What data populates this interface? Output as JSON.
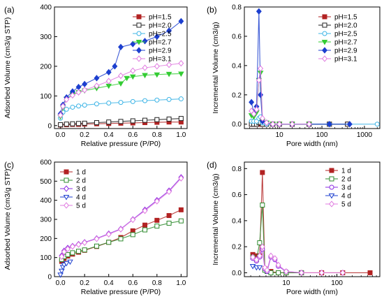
{
  "chart_data": [
    {
      "type": "line",
      "panel_label": "(a)",
      "xlabel": "Relative pressure (P/P0)",
      "ylabel": "Adsorbed Volume (cm3/g STP)",
      "xlim": [
        -0.05,
        1.05
      ],
      "ylim": [
        -10,
        400
      ],
      "x_ticks": [
        "0.0",
        "0.2",
        "0.4",
        "0.6",
        "0.8",
        "1.0"
      ],
      "y_ticks": [
        "0",
        "100",
        "200",
        "300",
        "400"
      ],
      "legend_position": "top-right",
      "series": [
        {
          "name": "pH=1.5",
          "color": "#b22222",
          "marker": "square-filled",
          "x": [
            0.0,
            0.05,
            0.1,
            0.15,
            0.2,
            0.3,
            0.4,
            0.5,
            0.6,
            0.7,
            0.8,
            0.9,
            1.0
          ],
          "y": [
            2,
            3,
            4,
            4,
            5,
            6,
            7,
            8,
            9,
            10,
            11,
            12,
            12
          ]
        },
        {
          "name": "pH=2.0",
          "color": "#222222",
          "marker": "square-open",
          "x": [
            0.0,
            0.05,
            0.1,
            0.15,
            0.2,
            0.3,
            0.4,
            0.5,
            0.6,
            0.7,
            0.8,
            0.9,
            1.0
          ],
          "y": [
            3,
            5,
            6,
            7,
            8,
            10,
            12,
            14,
            16,
            18,
            20,
            22,
            24
          ]
        },
        {
          "name": "pH=2.5",
          "color": "#3cb4e6",
          "marker": "circle-open",
          "x": [
            0.0,
            0.02,
            0.05,
            0.1,
            0.15,
            0.2,
            0.3,
            0.4,
            0.5,
            0.6,
            0.7,
            0.8,
            0.9,
            1.0
          ],
          "y": [
            25,
            45,
            55,
            62,
            66,
            69,
            73,
            76,
            78,
            81,
            84,
            86,
            88,
            90
          ]
        },
        {
          "name": "pH=2.7",
          "color": "#33cc33",
          "marker": "triangle-down-filled",
          "x": [
            0.0,
            0.02,
            0.05,
            0.1,
            0.15,
            0.2,
            0.3,
            0.4,
            0.5,
            0.55,
            0.6,
            0.7,
            0.8,
            0.9,
            1.0
          ],
          "y": [
            30,
            60,
            90,
            105,
            112,
            118,
            126,
            134,
            142,
            160,
            165,
            170,
            172,
            174,
            175
          ]
        },
        {
          "name": "pH=2.9",
          "color": "#1c3fcf",
          "marker": "diamond-filled",
          "x": [
            0.0,
            0.02,
            0.05,
            0.1,
            0.15,
            0.2,
            0.3,
            0.4,
            0.45,
            0.5,
            0.6,
            0.7,
            0.8,
            0.9,
            1.0
          ],
          "y": [
            40,
            70,
            95,
            115,
            130,
            140,
            160,
            180,
            200,
            265,
            275,
            285,
            300,
            320,
            352
          ]
        },
        {
          "name": "pH=3.1",
          "color": "#e07be0",
          "marker": "diamond-open",
          "x": [
            0.0,
            0.02,
            0.05,
            0.1,
            0.15,
            0.2,
            0.3,
            0.4,
            0.5,
            0.6,
            0.7,
            0.8,
            0.9,
            1.0
          ],
          "y": [
            35,
            65,
            88,
            102,
            112,
            120,
            134,
            150,
            168,
            185,
            195,
            200,
            205,
            210
          ]
        }
      ]
    },
    {
      "type": "line",
      "panel_label": "(b)",
      "xlabel": "Pore width (nm)",
      "ylabel": "Incremental Volume (cm3/g)",
      "x_scale": "log",
      "xlim": [
        1.5,
        2300
      ],
      "ylim": [
        -0.03,
        0.8
      ],
      "x_ticks": [
        "10",
        "100",
        "1000"
      ],
      "y_ticks": [
        "0.0",
        "0.2",
        "0.4",
        "0.6",
        "0.8"
      ],
      "legend_position": "top-right",
      "series": [
        {
          "name": "pH=1.5",
          "color": "#b22222",
          "marker": "square-filled",
          "x": [
            2.2,
            2.5,
            2.9,
            3.3,
            3.6,
            4.0,
            5.0,
            7.0,
            10.0,
            20.0,
            50.0,
            150.0,
            400.0
          ],
          "y": [
            0.0,
            0.0,
            0.0,
            0.0,
            0.0,
            0.0,
            0.0,
            0.0,
            0.0,
            0.0,
            0.0,
            0.0,
            0.0
          ]
        },
        {
          "name": "pH=2.0",
          "color": "#222222",
          "marker": "square-open",
          "x": [
            2.2,
            2.5,
            2.9,
            3.3,
            3.6,
            4.0,
            5.0,
            7.0,
            10.0,
            20.0,
            50.0,
            150.0,
            400.0
          ],
          "y": [
            0.0,
            0.0,
            0.0,
            0.01,
            0.01,
            0.0,
            0.0,
            0.0,
            0.0,
            0.0,
            0.0,
            0.0,
            0.0
          ]
        },
        {
          "name": "pH=2.5",
          "color": "#3cb4e6",
          "marker": "circle-open",
          "x": [
            2.2,
            2.5,
            2.9,
            3.3,
            3.6,
            4.0,
            5.0,
            7.0,
            10.0,
            20.0,
            50.0,
            150.0,
            2000.0
          ],
          "y": [
            0.02,
            0.02,
            0.02,
            0.04,
            0.05,
            0.01,
            0.0,
            0.0,
            0.0,
            0.0,
            0.0,
            0.0,
            0.0
          ]
        },
        {
          "name": "pH=2.7",
          "color": "#33cc33",
          "marker": "triangle-down-filled",
          "x": [
            2.2,
            2.5,
            2.9,
            3.3,
            3.6,
            4.0,
            5.0,
            7.0,
            10.0,
            20.0,
            50.0
          ],
          "y": [
            0.06,
            0.05,
            0.08,
            0.3,
            0.35,
            0.02,
            0.01,
            0.0,
            0.0,
            0.0,
            0.0
          ]
        },
        {
          "name": "pH=2.9",
          "color": "#1c3fcf",
          "marker": "diamond-filled",
          "x": [
            2.2,
            2.5,
            2.9,
            3.3,
            3.6,
            4.0,
            5.0,
            7.0,
            10.0,
            20.0,
            50.0,
            150.0,
            450.0
          ],
          "y": [
            0.15,
            0.08,
            0.12,
            0.77,
            0.2,
            0.02,
            0.01,
            0.0,
            0.0,
            0.0,
            0.0,
            0.0,
            0.0
          ]
        },
        {
          "name": "pH=3.1",
          "color": "#e07be0",
          "marker": "diamond-open",
          "x": [
            2.2,
            2.5,
            2.9,
            3.3,
            3.6,
            4.0,
            5.0,
            7.0,
            10.0,
            20.0,
            50.0
          ],
          "y": [
            0.09,
            0.07,
            0.1,
            0.3,
            0.38,
            0.04,
            0.01,
            0.0,
            0.0,
            0.0,
            0.0
          ]
        }
      ]
    },
    {
      "type": "line",
      "panel_label": "(c)",
      "xlabel": "Relative pressure (P/P0)",
      "ylabel": "Adsorbed Volume (cm3/g STP)",
      "xlim": [
        -0.05,
        1.05
      ],
      "ylim": [
        0,
        600
      ],
      "x_ticks": [
        "0.0",
        "0.2",
        "0.4",
        "0.6",
        "0.8",
        "1.0"
      ],
      "y_ticks": [
        "0",
        "100",
        "200",
        "300",
        "400",
        "500",
        "600"
      ],
      "legend_position": "top-left",
      "series": [
        {
          "name": "1 d",
          "color": "#b22222",
          "marker": "square-filled",
          "x": [
            0.01,
            0.03,
            0.06,
            0.1,
            0.15,
            0.2,
            0.3,
            0.4,
            0.5,
            0.6,
            0.7,
            0.8,
            0.9,
            1.0
          ],
          "y": [
            80,
            95,
            108,
            118,
            128,
            138,
            158,
            180,
            205,
            240,
            270,
            295,
            320,
            350
          ]
        },
        {
          "name": "2 d",
          "color": "#2e8b2e",
          "marker": "square-open",
          "x": [
            0.01,
            0.03,
            0.06,
            0.1,
            0.15,
            0.2,
            0.3,
            0.4,
            0.5,
            0.6,
            0.7,
            0.8,
            0.9,
            1.0
          ],
          "y": [
            90,
            105,
            115,
            125,
            133,
            140,
            160,
            180,
            198,
            220,
            245,
            265,
            280,
            292
          ]
        },
        {
          "name": "3 d",
          "color": "#8a2be2",
          "marker": "diamond-open",
          "x": [
            0.01,
            0.03,
            0.06,
            0.1,
            0.15,
            0.2,
            0.3,
            0.4,
            0.5,
            0.6,
            0.7,
            0.8,
            0.9,
            1.0
          ],
          "y": [
            110,
            135,
            150,
            160,
            170,
            180,
            200,
            225,
            250,
            300,
            350,
            400,
            450,
            520
          ]
        },
        {
          "name": "4 d",
          "color": "#1c3fcf",
          "marker": "triangle-down-open",
          "x": [
            0.0,
            0.01,
            0.02,
            0.03,
            0.05,
            0.08
          ],
          "y": [
            10,
            30,
            50,
            62,
            70,
            78
          ]
        },
        {
          "name": "5 d",
          "color": "#e07be0",
          "marker": "diamond-open",
          "x": [
            0.01,
            0.03,
            0.06,
            0.1,
            0.15,
            0.2,
            0.3,
            0.4,
            0.5,
            0.6,
            0.7,
            0.8,
            0.9,
            1.0
          ],
          "y": [
            105,
            130,
            145,
            158,
            168,
            178,
            198,
            222,
            248,
            298,
            345,
            395,
            445,
            515
          ]
        }
      ]
    },
    {
      "type": "line",
      "panel_label": "(d)",
      "xlabel": "Pore width (nm)",
      "ylabel": "Incremental Volume (cm3/g)",
      "x_scale": "log",
      "xlim": [
        1.5,
        700
      ],
      "ylim": [
        -0.03,
        0.85
      ],
      "x_ticks": [
        "10",
        "100"
      ],
      "y_ticks": [
        "0.0",
        "0.2",
        "0.4",
        "0.6",
        "0.8"
      ],
      "legend_position": "top-right",
      "series": [
        {
          "name": "1 d",
          "color": "#b22222",
          "marker": "square-filled",
          "x": [
            2.2,
            2.6,
            3.0,
            3.4,
            3.8,
            4.2,
            5.0,
            7.0,
            10.0,
            20.0,
            50.0,
            130.0,
            450.0
          ],
          "y": [
            0.14,
            0.13,
            0.13,
            0.77,
            0.03,
            0.01,
            0.01,
            0.0,
            0.0,
            0.0,
            0.0,
            0.0,
            0.0
          ]
        },
        {
          "name": "2 d",
          "color": "#2e8b2e",
          "marker": "square-open",
          "x": [
            2.2,
            2.6,
            3.0,
            3.4,
            3.8,
            4.2,
            5.0,
            7.0,
            10.0,
            20.0
          ],
          "y": [
            0.12,
            0.1,
            0.23,
            0.52,
            0.02,
            0.01,
            0.0,
            0.0,
            0.0,
            0.0
          ]
        },
        {
          "name": "3 d",
          "color": "#8a2be2",
          "marker": "circle-open",
          "x": [
            2.2,
            2.6,
            3.0,
            3.4,
            3.8,
            4.2,
            5.0,
            6.0,
            7.0,
            10.0,
            20.0
          ],
          "y": [
            0.11,
            0.09,
            0.12,
            0.18,
            0.03,
            0.01,
            0.12,
            0.1,
            0.05,
            0.01,
            0.0
          ]
        },
        {
          "name": "4 d",
          "color": "#1c3fcf",
          "marker": "triangle-down-open",
          "x": [
            2.2,
            2.6,
            3.0
          ],
          "y": [
            0.05,
            0.04,
            0.04
          ]
        },
        {
          "name": "5 d",
          "color": "#e07be0",
          "marker": "diamond-open",
          "x": [
            2.2,
            2.6,
            3.0,
            3.4,
            3.8,
            4.2,
            5.0,
            6.0,
            7.0,
            10.0,
            20.0,
            50.0,
            130.0
          ],
          "y": [
            0.12,
            0.1,
            0.13,
            0.2,
            0.04,
            0.02,
            0.13,
            0.11,
            0.06,
            0.01,
            0.0,
            0.0,
            0.0
          ]
        }
      ]
    }
  ]
}
